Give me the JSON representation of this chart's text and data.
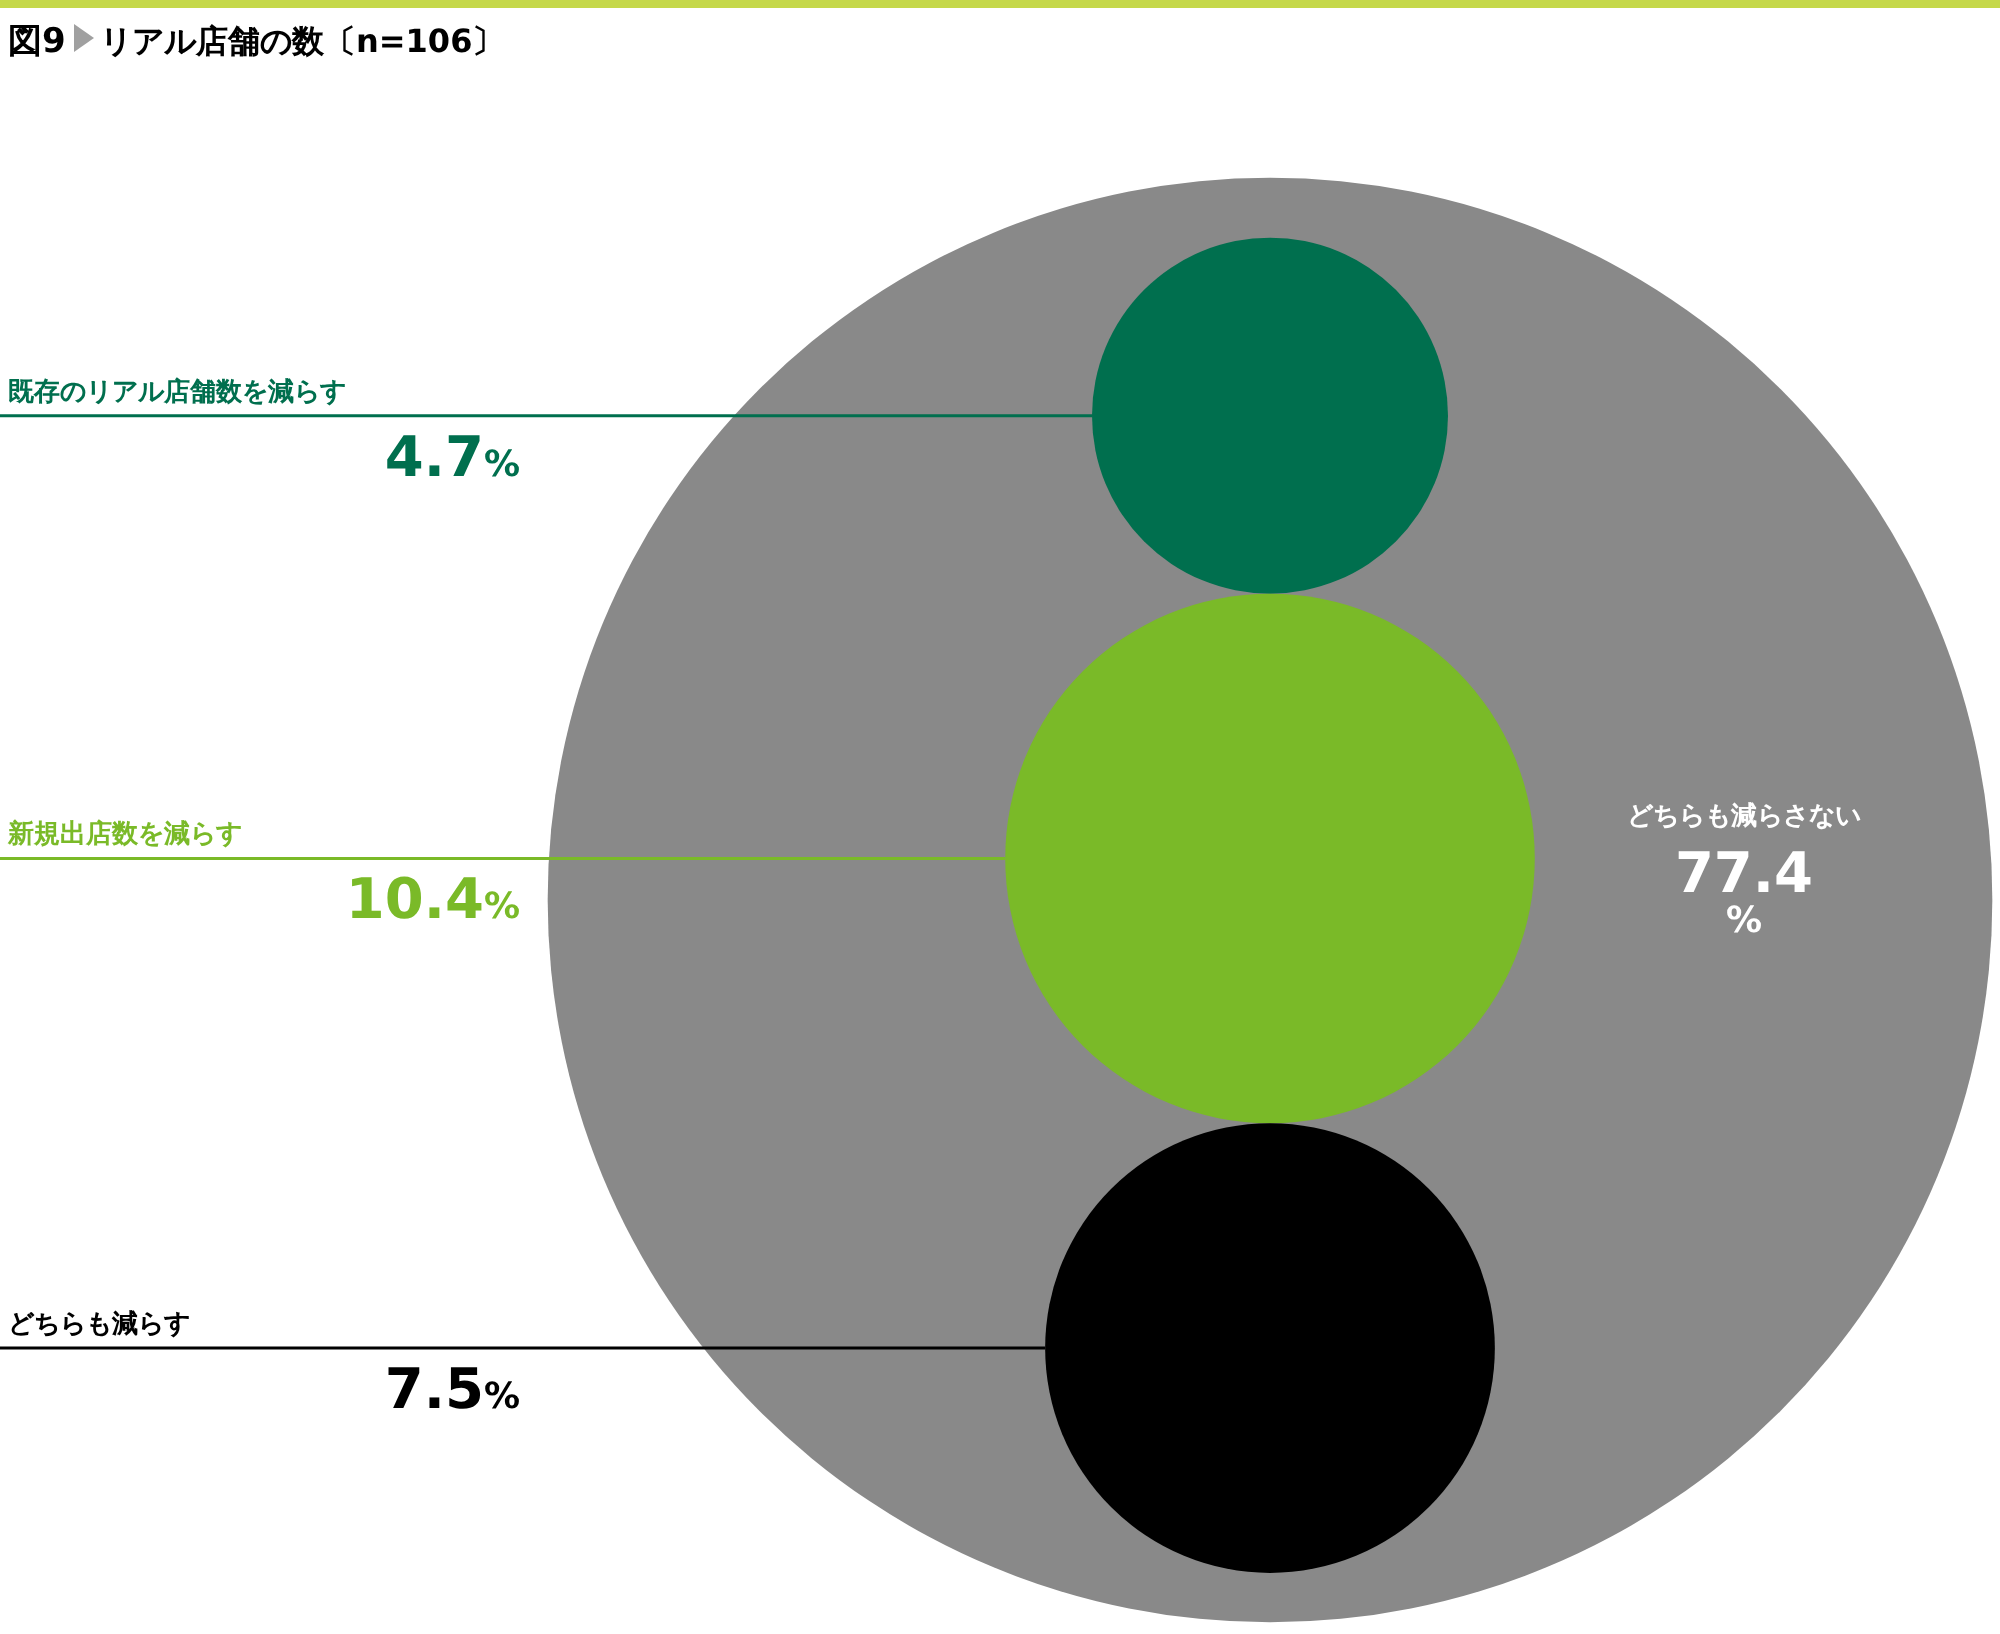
{
  "chart_data": {
    "type": "other",
    "title": "図9",
    "subtitle": "リアル店舗の数〔n=106〕",
    "categories": [
      "既存のリアル店舗数を減らす",
      "新規出店数を減らす",
      "どちらも減らす",
      "どちらも減らさない"
    ],
    "values": [
      4.7,
      10.4,
      7.5,
      77.4
    ],
    "value_labels": [
      "4.7%",
      "10.4%",
      "7.5%",
      "77.4%"
    ],
    "colors": [
      "#006f4e",
      "#7aba28",
      "#000000",
      "#898989"
    ]
  }
}
